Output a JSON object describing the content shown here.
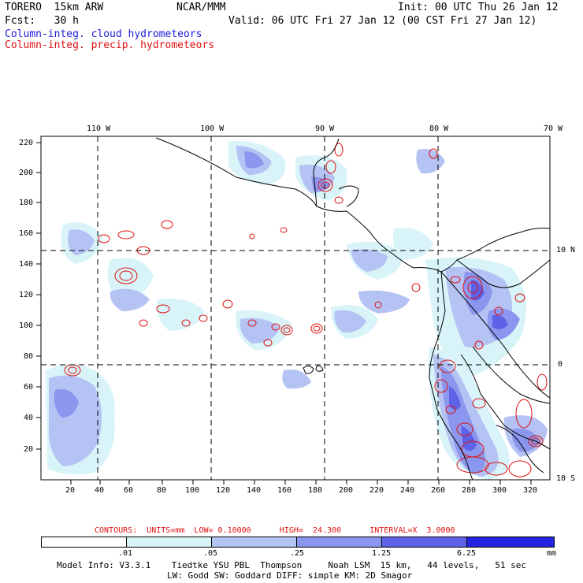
{
  "header": {
    "model": "TORERO  15km ARW",
    "center": "NCAR/MMM",
    "init": "Init: 00 UTC Thu 26 Jan 12",
    "fcst": "Fcst:   30 h",
    "valid": "Valid: 06 UTC Fri 27 Jan 12 (00 CST Fri 27 Jan 12)",
    "field1": "Column-integ. cloud hydrometeors",
    "field2": "Column-integ. precip. hydrometeors"
  },
  "map": {
    "top_lon_labels": [
      "110 W",
      "100 W",
      "90 W",
      "80 W",
      "70 W"
    ],
    "right_lat_labels": [
      "10 N",
      "0",
      "10 S"
    ],
    "y_ticks": [
      "220",
      "200",
      "180",
      "160",
      "140",
      "120",
      "100",
      "80",
      "60",
      "40",
      "20"
    ],
    "x_ticks": [
      "20",
      "40",
      "60",
      "80",
      "100",
      "120",
      "140",
      "160",
      "180",
      "200",
      "220",
      "240",
      "260",
      "280",
      "300",
      "320"
    ]
  },
  "contours_info": "CONTOURS:  UNITS=mm  LOW= 0.10000      HIGH=  24.300      INTERVAL=X  3.0000",
  "legend": {
    "labels": [
      ".01",
      ".05",
      ".25",
      "1.25",
      "6.25"
    ],
    "unit": "mm",
    "colors": [
      "#ffffff",
      "#d8f4f8",
      "#b4c2f4",
      "#8b96ee",
      "#5d62e6",
      "#2424e0"
    ]
  },
  "footer": {
    "line1": "Model Info: V3.3.1    Tiedtke YSU PBL  Thompson     Noah LSM  15 km,   44 levels,   51 sec",
    "line2": "LW: Godd SW: Goddard DIFF: simple KM: 2D Smagor"
  },
  "colors": {
    "cloud_text": "#1a1adb",
    "precip_text": "#e01010"
  }
}
